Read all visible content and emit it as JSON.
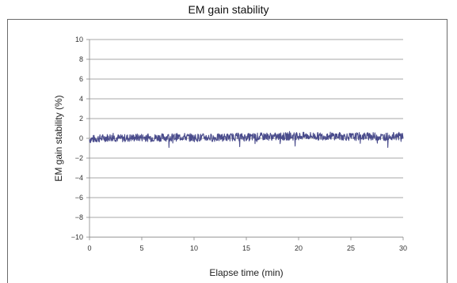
{
  "chart_data": {
    "type": "line",
    "title": "EM gain stability",
    "xlabel": "Elapse time (min)",
    "ylabel": "EM gain stability (%)",
    "xlim": [
      0,
      30
    ],
    "ylim": [
      -10,
      10
    ],
    "xticks": [
      0,
      5,
      10,
      15,
      20,
      25,
      30
    ],
    "yticks": [
      10,
      8,
      6,
      4,
      2,
      0,
      -2,
      -4,
      -6,
      -8,
      -10
    ],
    "xtick_labels": [
      "0",
      "5",
      "10",
      "15",
      "20",
      "25",
      "30"
    ],
    "ytick_labels": [
      "10",
      "8",
      "6",
      "4",
      "2",
      "0",
      "−2",
      "−4",
      "−6",
      "−8",
      "−10"
    ],
    "grid": "horizontal",
    "series": [
      {
        "color": "#4a4c8c",
        "x": [
          0,
          1,
          2,
          3,
          4,
          5,
          6,
          7,
          8,
          9,
          10,
          11,
          12,
          13,
          14,
          15,
          16,
          17,
          18,
          19,
          20,
          21,
          22,
          23,
          24,
          25,
          26,
          27,
          28,
          29,
          30
        ],
        "y": [
          -0.1,
          0.0,
          0.1,
          0.0,
          0.05,
          0.1,
          0.05,
          0.1,
          0.1,
          0.15,
          0.05,
          0.1,
          0.05,
          0.1,
          0.15,
          0.1,
          0.15,
          0.2,
          0.15,
          0.2,
          0.2,
          0.25,
          0.2,
          0.25,
          0.2,
          0.15,
          0.2,
          0.2,
          0.15,
          0.2,
          0.25
        ],
        "noise_amplitude": 0.4
      }
    ]
  }
}
